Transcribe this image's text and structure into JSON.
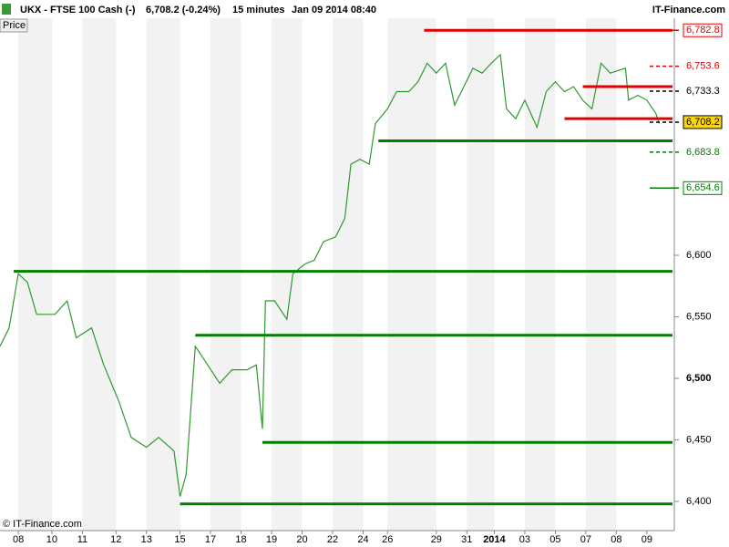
{
  "header": {
    "title": "UKX - FTSE 100 Cash (-)",
    "price": "6,708.2 (-0.24%)",
    "interval": "15 minutes",
    "datetime": "Jan 09 2014 08:40",
    "brand": "IT-Finance.com",
    "panel": "Price",
    "copyright": "© IT-Finance.com"
  },
  "chart_data": {
    "type": "line",
    "x": [
      -0.6,
      -0.3,
      0,
      0.3,
      0.6,
      1.2,
      1.6,
      1.9,
      2.4,
      2.8,
      3.3,
      3.7,
      4.2,
      4.6,
      5.1,
      5.3,
      5.5,
      5.8,
      6.1,
      6.6,
      7.0,
      7.5,
      7.8,
      8.0,
      8.1,
      8.4,
      8.8,
      9.0,
      9.4,
      9.7,
      10.0,
      10.4,
      10.7,
      10.9,
      11.2,
      11.5,
      11.7,
      12.1,
      12.4,
      12.8,
      13.1,
      13.4,
      13.7,
      14.0,
      14.3,
      14.6,
      14.9,
      15.2,
      15.5,
      15.8,
      16.0,
      16.3,
      16.6,
      17.0,
      17.3,
      17.6,
      17.9,
      18.2,
      18.5,
      18.8,
      19.1,
      19.4,
      19.9,
      20.0,
      20.3,
      20.6,
      20.9,
      21.0
    ],
    "series": [
      {
        "name": "Price",
        "color": "#2e9a2e",
        "values": [
          6526,
          6541,
          6585,
          6578,
          6552,
          6552,
          6563,
          6533,
          6541,
          6511,
          6481,
          6452,
          6444,
          6452,
          6441,
          6404,
          6422,
          6526,
          6515,
          6496,
          6507,
          6507,
          6511,
          6459,
          6563,
          6563,
          6548,
          6585,
          6593,
          6596,
          6611,
          6615,
          6630,
          6674,
          6678,
          6674,
          6707,
          6719,
          6733,
          6733,
          6741,
          6756,
          6748,
          6756,
          6722,
          6737,
          6752,
          6748,
          6756,
          6763,
          6719,
          6711,
          6726,
          6704,
          6733,
          6741,
          6733,
          6737,
          6726,
          6719,
          6756,
          6748,
          6752,
          6726,
          6730,
          6726,
          6715,
          6707
        ]
      }
    ],
    "levels": [
      {
        "value": 6782.8,
        "start": 13.3,
        "color": "#e00000"
      },
      {
        "value": 6737,
        "start": 18.5,
        "color": "#e00000"
      },
      {
        "value": 6711,
        "start": 17.9,
        "color": "#e00000"
      },
      {
        "value": 6693,
        "start": 11.8,
        "color": "#008000"
      },
      {
        "value": 6587,
        "start": -0.15,
        "color": "#008000"
      },
      {
        "value": 6535,
        "start": 5.8,
        "color": "#008000"
      },
      {
        "value": 6448,
        "start": 8.0,
        "color": "#008000"
      },
      {
        "value": 6398,
        "start": 5.3,
        "color": "#008000"
      }
    ],
    "price_markers": [
      {
        "value": 6782.8,
        "label": "6,782.8",
        "color": "#e00000",
        "kind": "box"
      },
      {
        "value": 6753.6,
        "label": "6,753.6",
        "color": "#e00000",
        "kind": "dashed"
      },
      {
        "value": 6733.3,
        "label": "6,733.3",
        "color": "#000000",
        "kind": "dashed"
      },
      {
        "value": 6708.2,
        "label": "6,708.2",
        "color": "#000000",
        "kind": "current"
      },
      {
        "value": 6683.8,
        "label": "6,683.8",
        "color": "#008000",
        "kind": "dashed"
      },
      {
        "value": 6654.6,
        "label": "6,654.6",
        "color": "#008000",
        "kind": "box"
      }
    ],
    "xlim": [
      -0.6,
      21.5
    ],
    "xticks": [
      {
        "value": 0,
        "label": "08"
      },
      {
        "value": 1.1,
        "label": "10"
      },
      {
        "value": 2.1,
        "label": "11"
      },
      {
        "value": 3.2,
        "label": "12"
      },
      {
        "value": 4.2,
        "label": "13"
      },
      {
        "value": 5.3,
        "label": "15"
      },
      {
        "value": 6.3,
        "label": "17"
      },
      {
        "value": 7.3,
        "label": "18"
      },
      {
        "value": 8.3,
        "label": "19"
      },
      {
        "value": 9.3,
        "label": "20"
      },
      {
        "value": 10.3,
        "label": "22"
      },
      {
        "value": 11.3,
        "label": "24"
      },
      {
        "value": 12.1,
        "label": "26"
      },
      {
        "value": 13.7,
        "label": "29"
      },
      {
        "value": 14.7,
        "label": "31"
      },
      {
        "value": 15.6,
        "label": "2014"
      },
      {
        "value": 16.6,
        "label": "03"
      },
      {
        "value": 17.6,
        "label": "05"
      },
      {
        "value": 18.6,
        "label": "07"
      },
      {
        "value": 19.6,
        "label": "08"
      },
      {
        "value": 20.6,
        "label": "09"
      }
    ],
    "ylim": [
      6381.5,
      6792.6
    ],
    "yticks": [
      {
        "value": 6400,
        "label": "6,400"
      },
      {
        "value": 6450,
        "label": "6,450"
      },
      {
        "value": 6500,
        "label": "6,500"
      },
      {
        "value": 6550,
        "label": "6,550"
      },
      {
        "value": 6600,
        "label": "6,600"
      }
    ]
  }
}
